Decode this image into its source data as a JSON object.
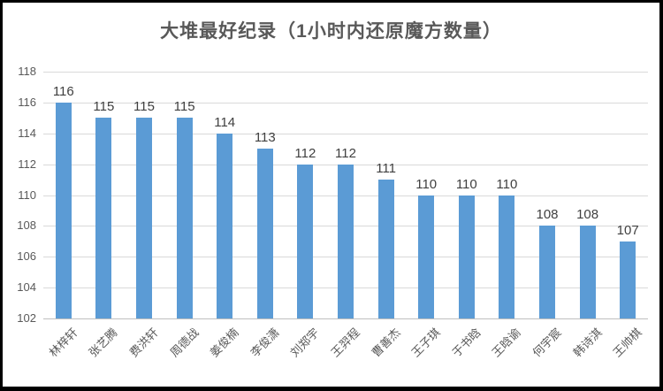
{
  "chart_data": {
    "type": "bar",
    "title": "大堆最好纪录（1小时内还原魔方数量）",
    "categories": [
      "林梓轩",
      "张艺腾",
      "费洪轩",
      "周德战",
      "姜俊楠",
      "李俊潇",
      "刘郑宇",
      "王羿程",
      "曹善杰",
      "王子琪",
      "于书晗",
      "王晗谕",
      "何宇宸",
      "韩诗淇",
      "王帅棋"
    ],
    "values": [
      116,
      115,
      115,
      115,
      114,
      113,
      112,
      112,
      111,
      110,
      110,
      110,
      108,
      108,
      107
    ],
    "xlabel": "",
    "ylabel": "",
    "ylim": [
      102,
      118
    ],
    "yticks": [
      102,
      104,
      106,
      108,
      110,
      112,
      114,
      116,
      118
    ],
    "grid": true,
    "legend": "none",
    "colors": {
      "bar": "#5B9BD5",
      "gridline": "#D9D9D9",
      "axis_line": "#BFBFBF",
      "title_text": "#595959",
      "axis_text": "#595959",
      "value_text": "#404040"
    }
  }
}
